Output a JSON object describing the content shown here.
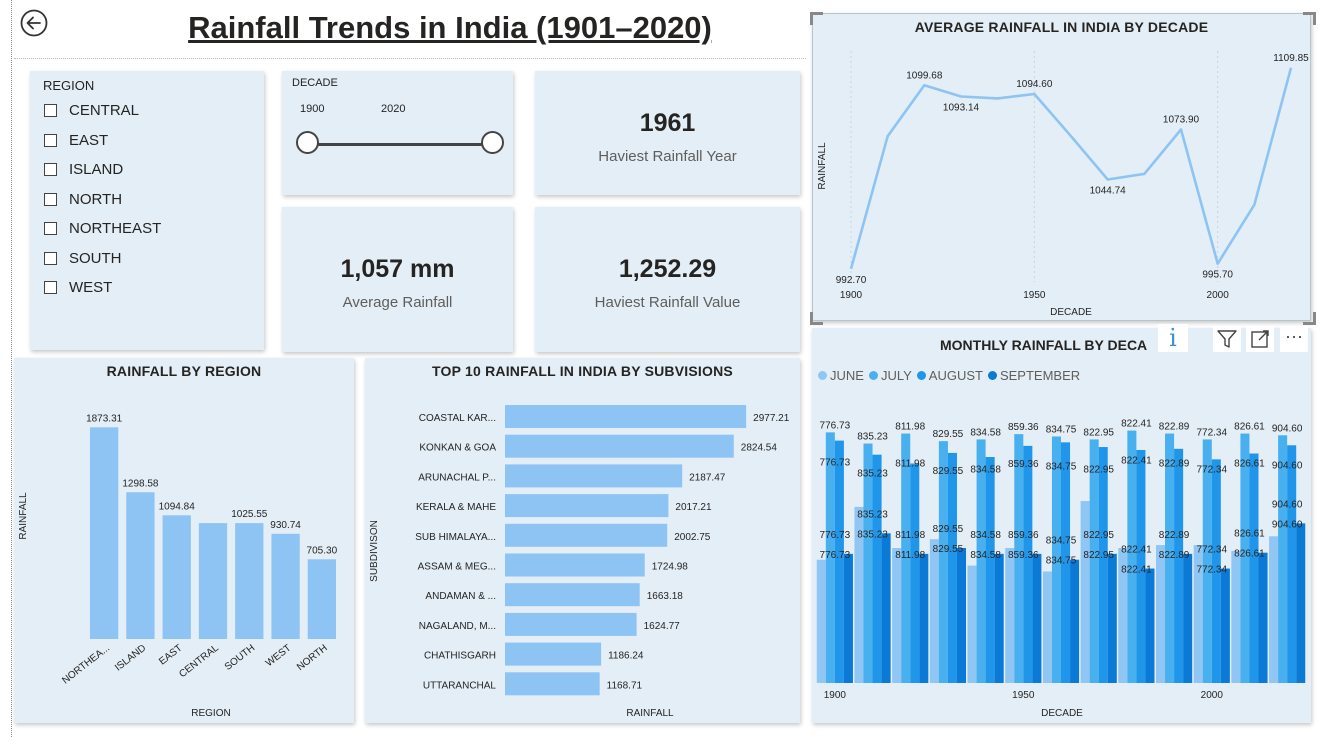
{
  "title": "Rainfall Trends in India (1901–2020)",
  "colors": {
    "accent": "#8ec4f4",
    "panel": "#e3eef6",
    "june": "#90c6f4",
    "july": "#49b0f0",
    "august": "#1f96ea",
    "september": "#0b7ad6"
  },
  "region_slicer": {
    "label": "REGION",
    "items": [
      "CENTRAL",
      "EAST",
      "ISLAND",
      "NORTH",
      "NORTHEAST",
      "SOUTH",
      "WEST"
    ]
  },
  "decade_slicer": {
    "label": "DECADE",
    "min": "1900",
    "max": "2020",
    "range_fraction": [
      0,
      1
    ]
  },
  "cards": {
    "heaviest_year": {
      "value": "1961",
      "label": "Haviest Rainfall Year"
    },
    "average": {
      "value": "1,057 mm",
      "label": "Average Rainfall"
    },
    "heaviest_value": {
      "value": "1,252.29",
      "label": "Haviest Rainfall Value"
    }
  },
  "visual_header_icons": [
    "info-icon",
    "filter-icon",
    "focus-mode-icon",
    "more-options-icon"
  ],
  "chart_data": [
    {
      "id": "avg_decade",
      "type": "line",
      "title": "AVERAGE RAINFALL IN INDIA BY DECADE",
      "xlabel": "DECADE",
      "ylabel": "RAINFALL",
      "x": [
        1900,
        1910,
        1920,
        1930,
        1940,
        1950,
        1960,
        1970,
        1980,
        1990,
        2000,
        2010,
        2020
      ],
      "values": [
        992.7,
        1070.0,
        1099.68,
        1093.14,
        1092.0,
        1094.6,
        1070.0,
        1044.74,
        1048.0,
        1073.9,
        995.7,
        1030.0,
        1109.85
      ],
      "labels": [
        "992.70",
        "",
        "1099.68",
        "1093.14",
        "",
        "1094.60",
        "",
        "1044.74",
        "",
        "1073.90",
        "995.70",
        "",
        "1109.85"
      ],
      "xticks": [
        1900,
        1950,
        2000
      ],
      "ylim": [
        985,
        1115
      ]
    },
    {
      "id": "by_region",
      "type": "bar",
      "title": "RAINFALL BY REGION",
      "xlabel": "REGION",
      "ylabel": "RAINFALL",
      "categories": [
        "NORTHEA...",
        "ISLAND",
        "EAST",
        "CENTRAL",
        "SOUTH",
        "WEST",
        "NORTH"
      ],
      "values": [
        1873.31,
        1298.58,
        1094.84,
        1025.55,
        1025.55,
        930.74,
        705.3
      ],
      "labels": [
        "1873.31",
        "1298.58",
        "1094.84",
        "",
        "1025.55",
        "930.74",
        "705.30"
      ],
      "ylim": [
        0,
        2000
      ]
    },
    {
      "id": "top10_subdivisions",
      "type": "bar",
      "orientation": "horizontal",
      "title": "TOP 10 RAINFALL IN INDIA BY SUBVISIONS",
      "xlabel": "RAINFALL",
      "ylabel": "SUBDIVISON",
      "categories": [
        "COASTAL KAR...",
        "KONKAN & GOA",
        "ARUNACHAL P...",
        "KERALA & MAHE",
        "SUB HIMALAYA...",
        "ASSAM & MEG...",
        "ANDAMAN & ...",
        "NAGALAND, M...",
        "CHATHISGARH",
        "UTTARANCHAL"
      ],
      "values": [
        2977.21,
        2824.54,
        2187.47,
        2017.21,
        2002.75,
        1724.98,
        1663.18,
        1624.77,
        1186.24,
        1168.71
      ],
      "xlim": [
        0,
        3000
      ]
    },
    {
      "id": "monthly_decade",
      "type": "bar",
      "title": "MONTHLY RAINFALL BY DECA",
      "xlabel": "DECADE",
      "categories": [
        "1900",
        "1910",
        "1920",
        "1930",
        "1940",
        "1950",
        "1960",
        "1970",
        "1980",
        "1990",
        "2000",
        "2010",
        "2020"
      ],
      "xticks": [
        "1900",
        "1950",
        "2000"
      ],
      "series": [
        {
          "name": "JUNE",
          "values": [
            210,
            300,
            230,
            245,
            200,
            230,
            190,
            310,
            230,
            235,
            235,
            225,
            250
          ]
        },
        {
          "name": "JULY",
          "values": [
            427,
            408,
            425,
            412,
            415,
            424,
            420,
            415,
            430,
            425,
            415,
            425,
            422
          ]
        },
        {
          "name": "AUGUST",
          "values": [
            413,
            389,
            374,
            392,
            385,
            404,
            410,
            402,
            397,
            399,
            381,
            391,
            405
          ]
        },
        {
          "name": "SEPTEMBER",
          "values": [
            220,
            255,
            220,
            230,
            220,
            220,
            210,
            220,
            195,
            220,
            195,
            222,
            272
          ]
        }
      ],
      "top_labels": [
        "776.73",
        "835.23",
        "811.98",
        "829.55",
        "834.58",
        "859.36",
        "834.75",
        "822.95",
        "822.41",
        "822.89",
        "772.34",
        "826.61",
        "904.60"
      ],
      "ylim": [
        0,
        460
      ]
    }
  ]
}
